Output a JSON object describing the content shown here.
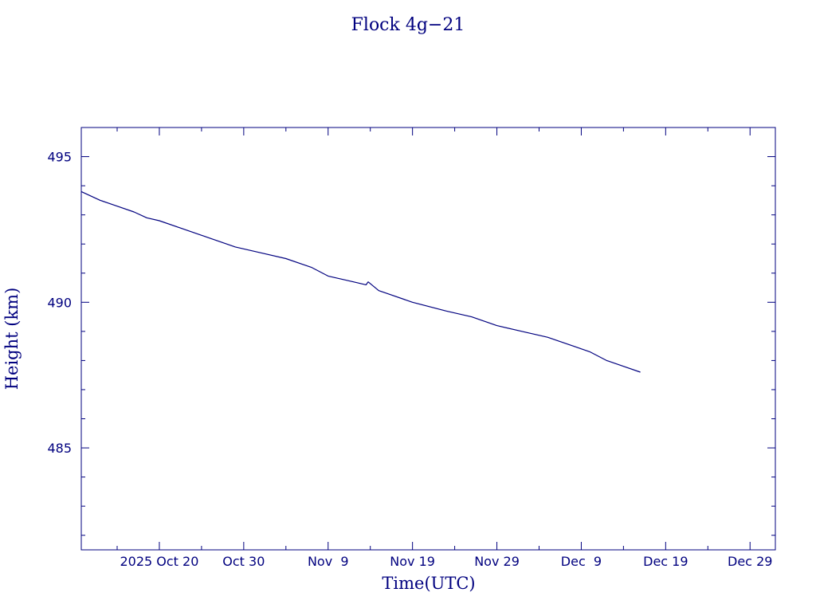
{
  "chart_data": {
    "type": "line",
    "title": "Flock 4g−21",
    "xlabel": "Time(UTC)",
    "ylabel": "Height (km)",
    "color": "#00007f",
    "xlim": [
      "2025-10-10T18:00",
      "2026-01-01T00:00"
    ],
    "ylim": [
      481.5,
      496
    ],
    "x_major_ticks": [
      "2025-10-20",
      "2025-10-30",
      "2025-11-09",
      "2025-11-19",
      "2025-11-29",
      "2025-12-09",
      "2025-12-19",
      "2025-12-29"
    ],
    "x_tick_labels": [
      "2025 Oct 20",
      "Oct 30",
      "Nov  9",
      "Nov 19",
      "Nov 29",
      "Dec  9",
      "Dec 19",
      "Dec 29"
    ],
    "x_minor_ticks": [
      "2025-10-15",
      "2025-10-25",
      "2025-11-04",
      "2025-11-14",
      "2025-11-24",
      "2025-12-04",
      "2025-12-14",
      "2025-12-24"
    ],
    "y_major_ticks": [
      485,
      490,
      495
    ],
    "y_tick_labels": [
      "485",
      "490",
      "495"
    ],
    "y_minor_ticks": [
      482,
      483,
      484,
      486,
      487,
      488,
      489,
      491,
      492,
      493,
      494
    ],
    "grid": false,
    "legend": "none",
    "series": [
      {
        "x": [
          "2025-10-10T18:00",
          "2025-10-13T00:00",
          "2025-10-15T00:00",
          "2025-10-17T00:00",
          "2025-10-18T12:00",
          "2025-10-20T00:00",
          "2025-10-23T00:00",
          "2025-10-26T00:00",
          "2025-10-29T00:00",
          "2025-11-01T00:00",
          "2025-11-04T00:00",
          "2025-11-07T00:00",
          "2025-11-09T00:00",
          "2025-11-12T00:00",
          "2025-11-13T12:00",
          "2025-11-13T18:00",
          "2025-11-15T00:00",
          "2025-11-16T00:00",
          "2025-11-19T00:00",
          "2025-11-23T00:00",
          "2025-11-26T00:00",
          "2025-11-29T00:00",
          "2025-12-02T00:00",
          "2025-12-05T00:00",
          "2025-12-08T00:00",
          "2025-12-10T00:00",
          "2025-12-12T00:00",
          "2025-12-14T00:00",
          "2025-12-16T00:00"
        ],
        "y": [
          493.8,
          493.5,
          493.3,
          493.1,
          492.9,
          492.8,
          492.5,
          492.2,
          491.9,
          491.7,
          491.5,
          491.2,
          490.9,
          490.7,
          490.6,
          490.7,
          490.4,
          490.3,
          490.0,
          489.7,
          489.5,
          489.2,
          489.0,
          488.8,
          488.5,
          488.3,
          488.0,
          487.8,
          487.6
        ]
      }
    ]
  }
}
